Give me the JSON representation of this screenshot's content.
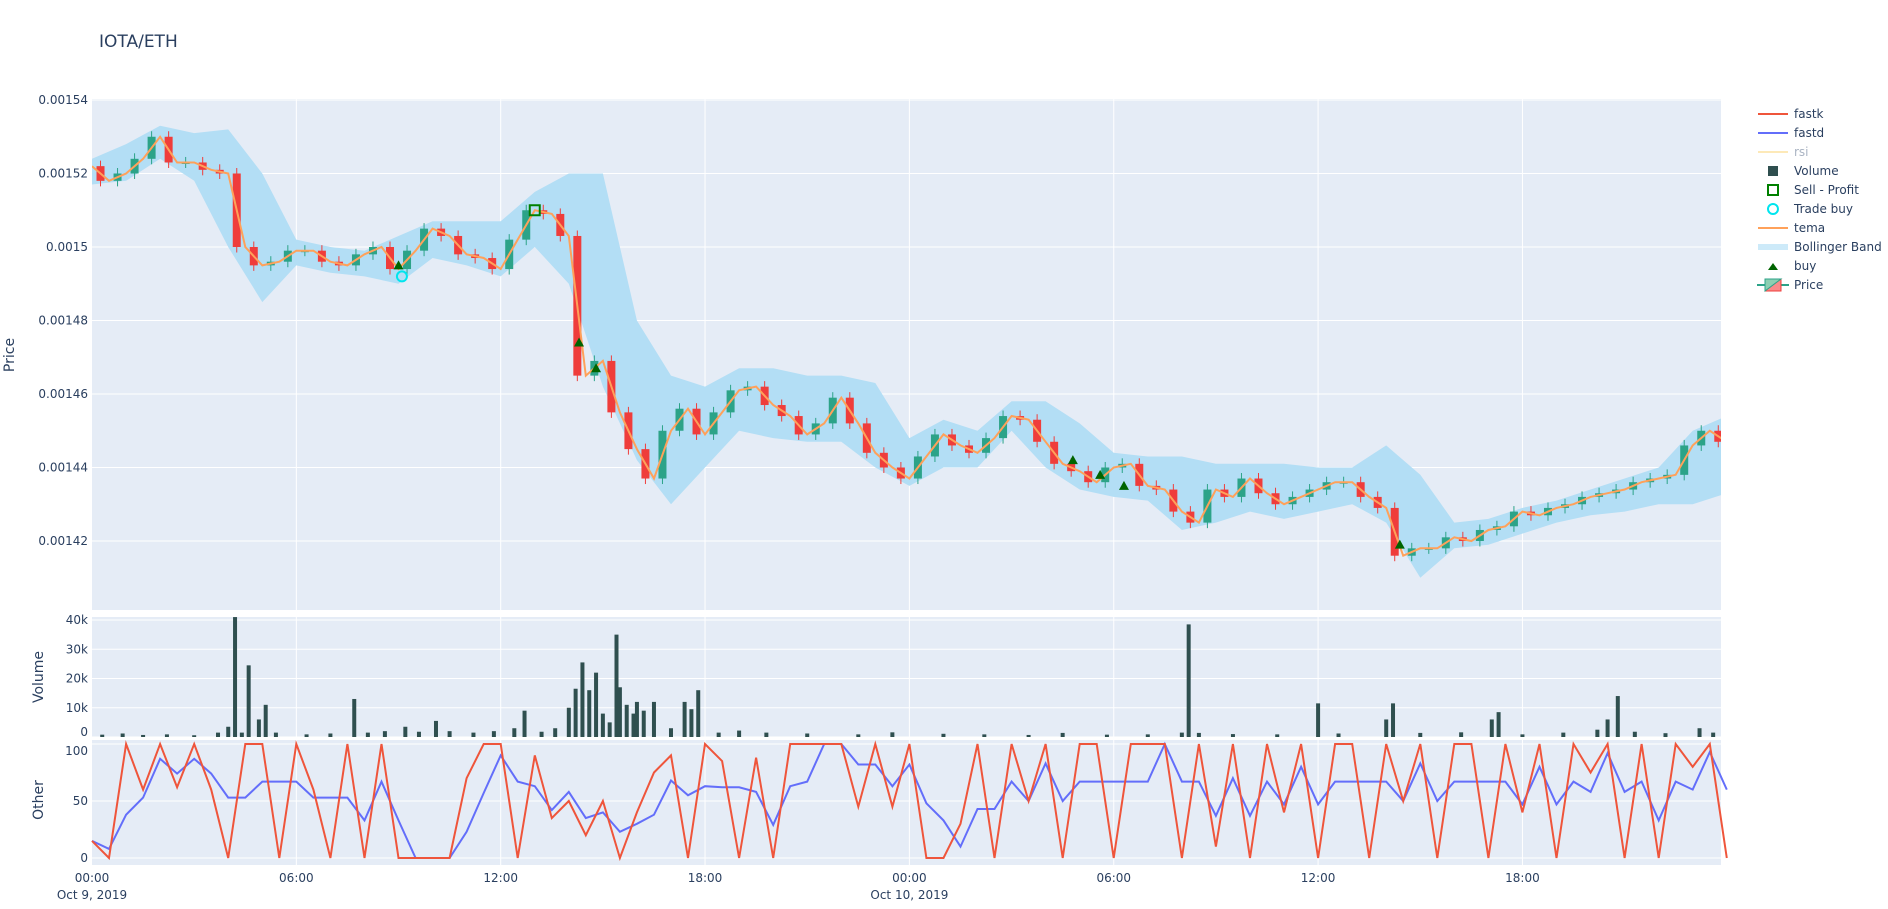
{
  "title": "IOTA/ETH",
  "colors": {
    "background": "#E5ECF6",
    "increasing": "#2ca388",
    "decreasing": "#ef3d3b",
    "tema": "#ffa15a",
    "bollinger": "#b3def5",
    "volume": "#2f4f4f",
    "fastk": "#EF553B",
    "fastd": "#636EFA",
    "rsi": "#fde9b8",
    "buy": "#006400",
    "sell_profit": "#008000",
    "trade_buy": "#00e5ee"
  },
  "legend": [
    {
      "name": "fastk",
      "icon": "line-fastk"
    },
    {
      "name": "fastd",
      "icon": "line-fastd"
    },
    {
      "name": "rsi",
      "icon": "line-rsi"
    },
    {
      "name": "Volume",
      "icon": "square-filled"
    },
    {
      "name": "Sell - Profit",
      "icon": "square-open"
    },
    {
      "name": "Trade buy",
      "icon": "circle-open"
    },
    {
      "name": "tema",
      "icon": "line-tema"
    },
    {
      "name": "Bollinger Band",
      "icon": "band-fill"
    },
    {
      "name": "buy",
      "icon": "triangle-up"
    },
    {
      "name": "Price",
      "icon": "candlestick"
    }
  ],
  "chart_data": [
    {
      "type": "candlestick",
      "ylabel": "Price",
      "ylim": [
        0.001404,
        0.00154
      ],
      "yticks": [
        "0.00154",
        "0.00152",
        "0.0015",
        "0.00148",
        "0.00146",
        "0.00144",
        "0.00142"
      ],
      "ytick_values": [
        0.00154,
        0.00152,
        0.0015,
        0.00148,
        0.00146,
        0.00144,
        0.00142
      ],
      "xrange_hours_from_start": [
        0,
        47.83
      ],
      "close_step_hours": 0.5,
      "close": [
        0.001522,
        0.001518,
        0.00152,
        0.001524,
        0.00153,
        0.001523,
        0.001523,
        0.001521,
        0.00152,
        0.0015,
        0.001495,
        0.001496,
        0.001499,
        0.001499,
        0.001496,
        0.001495,
        0.001498,
        0.0015,
        0.001494,
        0.001499,
        0.001505,
        0.001503,
        0.001498,
        0.001497,
        0.001494,
        0.001502,
        0.00151,
        0.001509,
        0.001503,
        0.001465,
        0.001469,
        0.001455,
        0.001445,
        0.001437,
        0.00145,
        0.001456,
        0.001449,
        0.001455,
        0.001461,
        0.001462,
        0.001457,
        0.001454,
        0.001449,
        0.001452,
        0.001459,
        0.001452,
        0.001444,
        0.00144,
        0.001437,
        0.001443,
        0.001449,
        0.001446,
        0.001444,
        0.001448,
        0.001454,
        0.001453,
        0.001447,
        0.001441,
        0.001439,
        0.001436,
        0.00144,
        0.001441,
        0.001435,
        0.001434,
        0.001428,
        0.001425,
        0.001434,
        0.001432,
        0.001437,
        0.001433,
        0.00143,
        0.001432,
        0.001434,
        0.001436,
        0.001436,
        0.001432,
        0.001429,
        0.001416,
        0.001418,
        0.001418,
        0.001421,
        0.00142,
        0.001423,
        0.001424,
        0.001428,
        0.001427,
        0.001429,
        0.00143,
        0.001432,
        0.001433,
        0.001434,
        0.001436,
        0.001437,
        0.001438,
        0.001446,
        0.00145,
        0.001447
      ],
      "bollinger_step_hours": 1,
      "bollinger_upper": [
        0.001524,
        0.001528,
        0.001533,
        0.001531,
        0.001532,
        0.00152,
        0.001502,
        0.0015,
        0.001499,
        0.001503,
        0.001507,
        0.001507,
        0.001507,
        0.001515,
        0.00152,
        0.00152,
        0.00148,
        0.001465,
        0.001462,
        0.001467,
        0.001467,
        0.001465,
        0.001465,
        0.001463,
        0.001448,
        0.001453,
        0.00145,
        0.001458,
        0.001458,
        0.001452,
        0.001444,
        0.001443,
        0.001443,
        0.001441,
        0.001441,
        0.001441,
        0.00144,
        0.00144,
        0.001446,
        0.001438,
        0.001425,
        0.001426,
        0.001429,
        0.001431,
        0.001434,
        0.001437,
        0.00144,
        0.00145,
        0.001454
      ],
      "bollinger_lower": [
        0.001517,
        0.001518,
        0.001524,
        0.001518,
        0.0015,
        0.001485,
        0.001495,
        0.001493,
        0.001492,
        0.00149,
        0.001497,
        0.001495,
        0.001492,
        0.0015,
        0.00149,
        0.001462,
        0.001442,
        0.00143,
        0.00144,
        0.00145,
        0.001448,
        0.001447,
        0.001447,
        0.00144,
        0.001435,
        0.00144,
        0.00144,
        0.00145,
        0.00144,
        0.001434,
        0.001432,
        0.001431,
        0.001423,
        0.001425,
        0.001428,
        0.001426,
        0.001428,
        0.00143,
        0.001425,
        0.00141,
        0.001418,
        0.001419,
        0.001422,
        0.001425,
        0.001427,
        0.001428,
        0.00143,
        0.00143,
        0.001433
      ],
      "buy": [
        [
          9.0,
          0.001495
        ],
        [
          14.3,
          0.001474
        ],
        [
          14.8,
          0.001467
        ],
        [
          28.8,
          0.001442
        ],
        [
          29.6,
          0.001438
        ],
        [
          30.3,
          0.001435
        ],
        [
          38.4,
          0.001419
        ]
      ],
      "sell_profit": [
        [
          13.0,
          0.00151
        ]
      ],
      "trade_buy": [
        [
          9.1,
          0.001492
        ]
      ]
    },
    {
      "type": "bar",
      "ylabel": "Volume",
      "ylim": [
        0,
        41000
      ],
      "yticks": [
        "0",
        "10k",
        "20k",
        "30k",
        "40k"
      ],
      "ytick_values": [
        0,
        10000,
        20000,
        30000,
        40000
      ],
      "bars_hour_value": [
        [
          0.3,
          800
        ],
        [
          0.9,
          1200
        ],
        [
          1.5,
          700
        ],
        [
          2.2,
          900
        ],
        [
          3.0,
          600
        ],
        [
          3.7,
          1500
        ],
        [
          4.0,
          3500
        ],
        [
          4.2,
          41000
        ],
        [
          4.4,
          1500
        ],
        [
          4.6,
          24500
        ],
        [
          4.9,
          6000
        ],
        [
          5.1,
          11000
        ],
        [
          5.4,
          1500
        ],
        [
          6.3,
          900
        ],
        [
          7.0,
          1200
        ],
        [
          7.7,
          13000
        ],
        [
          8.1,
          1500
        ],
        [
          8.6,
          2000
        ],
        [
          9.2,
          3500
        ],
        [
          9.6,
          1800
        ],
        [
          10.1,
          5500
        ],
        [
          10.5,
          2000
        ],
        [
          11.2,
          1500
        ],
        [
          11.8,
          2000
        ],
        [
          12.4,
          3000
        ],
        [
          12.7,
          9000
        ],
        [
          13.2,
          1800
        ],
        [
          13.6,
          3000
        ],
        [
          14.0,
          10000
        ],
        [
          14.2,
          16500
        ],
        [
          14.4,
          25500
        ],
        [
          14.6,
          16000
        ],
        [
          14.8,
          22000
        ],
        [
          15.0,
          8000
        ],
        [
          15.2,
          5000
        ],
        [
          15.4,
          35000
        ],
        [
          15.5,
          17000
        ],
        [
          15.7,
          11000
        ],
        [
          15.9,
          8000
        ],
        [
          16.0,
          12000
        ],
        [
          16.2,
          9000
        ],
        [
          16.5,
          12000
        ],
        [
          17.0,
          3000
        ],
        [
          17.4,
          12000
        ],
        [
          17.6,
          9500
        ],
        [
          17.8,
          16000
        ],
        [
          18.4,
          1500
        ],
        [
          19.0,
          2200
        ],
        [
          19.8,
          1500
        ],
        [
          21.0,
          1200
        ],
        [
          22.5,
          900
        ],
        [
          23.5,
          1600
        ],
        [
          25.0,
          1100
        ],
        [
          26.2,
          900
        ],
        [
          27.5,
          700
        ],
        [
          28.5,
          1400
        ],
        [
          29.8,
          800
        ],
        [
          31.0,
          900
        ],
        [
          32.0,
          1500
        ],
        [
          32.2,
          38500
        ],
        [
          32.5,
          1400
        ],
        [
          33.5,
          1000
        ],
        [
          34.8,
          900
        ],
        [
          36.0,
          11500
        ],
        [
          36.6,
          1200
        ],
        [
          38.0,
          6000
        ],
        [
          38.2,
          11500
        ],
        [
          39.0,
          1400
        ],
        [
          40.2,
          1600
        ],
        [
          41.1,
          6000
        ],
        [
          41.3,
          8500
        ],
        [
          42.0,
          900
        ],
        [
          43.2,
          1500
        ],
        [
          44.2,
          2500
        ],
        [
          44.5,
          6000
        ],
        [
          44.8,
          14000
        ],
        [
          45.3,
          1800
        ],
        [
          46.2,
          1300
        ],
        [
          47.2,
          3000
        ],
        [
          47.6,
          1500
        ]
      ]
    },
    {
      "type": "line",
      "ylabel": "Other",
      "ylim": [
        0,
        100
      ],
      "yticks": [
        "0",
        "50",
        "100"
      ],
      "ytick_values": [
        0,
        50,
        100
      ],
      "step_hours": 0.5,
      "series": [
        {
          "name": "fastk",
          "values": [
            15,
            0,
            100,
            60,
            100,
            62,
            100,
            60,
            0,
            100,
            100,
            0,
            100,
            60,
            0,
            100,
            0,
            100,
            0,
            0,
            0,
            0,
            70,
            100,
            100,
            0,
            90,
            35,
            50,
            20,
            50,
            0,
            40,
            75,
            90,
            0,
            100,
            85,
            0,
            88,
            0,
            100,
            100,
            100,
            100,
            45,
            100,
            45,
            100,
            0,
            0,
            30,
            100,
            0,
            100,
            50,
            100,
            0,
            100,
            100,
            0,
            100,
            100,
            100,
            0,
            100,
            10,
            100,
            0,
            100,
            40,
            100,
            0,
            100,
            100,
            0,
            100,
            50,
            100,
            0,
            100,
            100,
            0,
            100,
            40,
            100,
            0,
            100,
            75,
            100,
            0,
            100,
            0,
            100,
            80,
            100,
            0
          ]
        },
        {
          "name": "fastd",
          "values": [
            15,
            8,
            38,
            53,
            87,
            74,
            87,
            74,
            53,
            53,
            67,
            67,
            67,
            53,
            53,
            53,
            33,
            67,
            33,
            0,
            0,
            0,
            23,
            57,
            90,
            67,
            63,
            42,
            58,
            35,
            40,
            23,
            30,
            38,
            68,
            55,
            63,
            62,
            62,
            58,
            29,
            63,
            67,
            100,
            100,
            82,
            82,
            63,
            82,
            48,
            33,
            10,
            43,
            43,
            67,
            50,
            83,
            50,
            67,
            67,
            67,
            67,
            67,
            100,
            67,
            67,
            37,
            70,
            37,
            67,
            47,
            80,
            47,
            67,
            67,
            67,
            67,
            50,
            83,
            50,
            67,
            67,
            67,
            67,
            47,
            80,
            47,
            67,
            58,
            92,
            58,
            67,
            33,
            67,
            60,
            93,
            60
          ]
        }
      ]
    }
  ],
  "xaxis": {
    "ticks": [
      {
        "label": "00:00",
        "date": "Oct 9, 2019",
        "hour": 0
      },
      {
        "label": "06:00",
        "date": "",
        "hour": 6
      },
      {
        "label": "12:00",
        "date": "",
        "hour": 12
      },
      {
        "label": "18:00",
        "date": "",
        "hour": 18
      },
      {
        "label": "00:00",
        "date": "Oct 10, 2019",
        "hour": 24
      },
      {
        "label": "06:00",
        "date": "",
        "hour": 30
      },
      {
        "label": "12:00",
        "date": "",
        "hour": 36
      },
      {
        "label": "18:00",
        "date": "",
        "hour": 42
      }
    ]
  }
}
